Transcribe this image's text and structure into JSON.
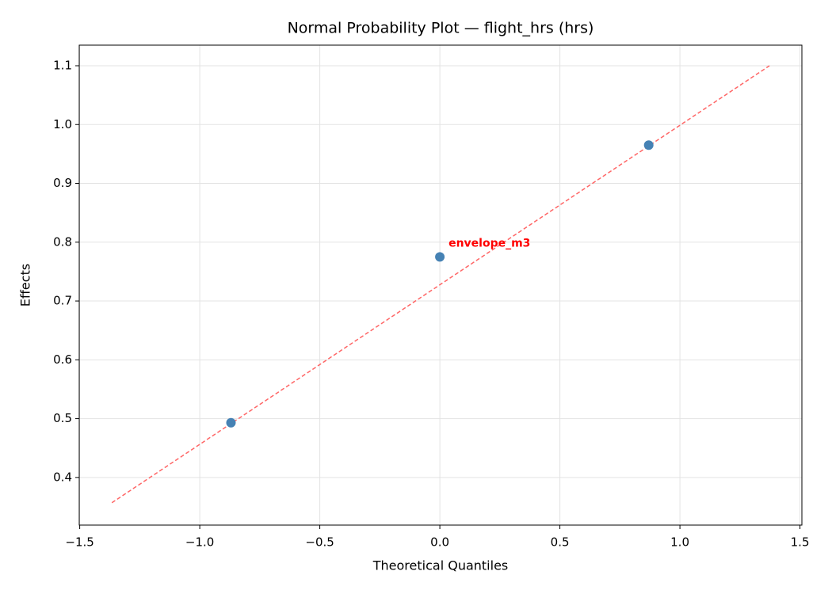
{
  "chart_data": {
    "type": "scatter",
    "title": "Normal Probability Plot — flight_hrs (hrs)",
    "x_label": "Theoretical Quantiles",
    "y_label": "Effects",
    "x": [
      -0.87,
      0,
      0.87
    ],
    "values": [
      0.493,
      0.775,
      0.965
    ],
    "labels": [
      null,
      "envelope_m3",
      null
    ],
    "color": "#4682b4",
    "label_color": "#ff0000",
    "reference_line": {
      "x": [
        -1.366,
        1.373
      ],
      "y": [
        0.357,
        1.1
      ],
      "color": "#ff6666",
      "dashed": true
    },
    "xlim": [
      -1.502,
      1.508
    ],
    "ylim": [
      0.319,
      1.135
    ],
    "xticks": [
      {
        "value": -1.5,
        "label": "−1.5"
      },
      {
        "value": -1.0,
        "label": "−1.0"
      },
      {
        "value": -0.5,
        "label": "−0.5"
      },
      {
        "value": 0,
        "label": "0.0"
      },
      0.5,
      {
        "value": 1.0,
        "label": "1.0"
      },
      1.5
    ],
    "yticks": [
      0.4,
      0.5,
      0.6,
      0.7,
      0.8,
      0.9,
      {
        "value": 1.0,
        "label": "1.0"
      },
      1.1
    ],
    "grid": true
  }
}
